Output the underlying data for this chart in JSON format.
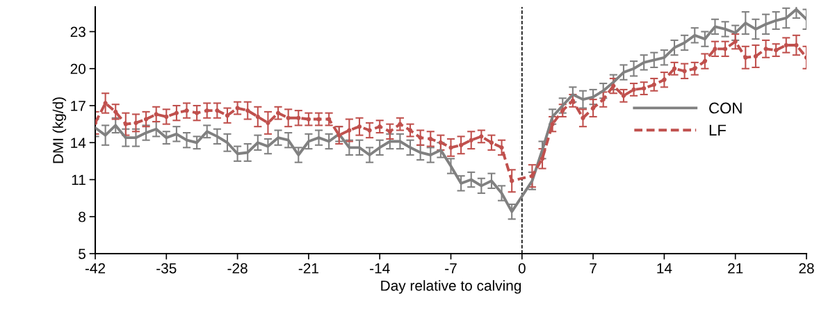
{
  "chart_data": {
    "type": "line",
    "xlabel": "Day relative to calving",
    "ylabel": "DMI (kg/d)",
    "x": [
      -42,
      -41,
      -40,
      -39,
      -38,
      -37,
      -36,
      -35,
      -34,
      -33,
      -32,
      -31,
      -30,
      -29,
      -28,
      -27,
      -26,
      -25,
      -24,
      -23,
      -22,
      -21,
      -20,
      -19,
      -18,
      -17,
      -16,
      -15,
      -14,
      -13,
      -12,
      -11,
      -10,
      -9,
      -8,
      -7,
      -6,
      -5,
      -4,
      -3,
      -2,
      -1,
      1,
      2,
      3,
      4,
      5,
      6,
      7,
      8,
      9,
      10,
      11,
      12,
      13,
      14,
      15,
      16,
      17,
      18,
      19,
      20,
      21,
      22,
      23,
      24,
      25,
      26,
      27,
      28
    ],
    "series": [
      {
        "name": "CON",
        "color": "#808080",
        "line_style": "solid",
        "marker": "none",
        "values": [
          15.2,
          14.6,
          15.4,
          14.4,
          14.4,
          14.8,
          15.1,
          14.4,
          14.7,
          14.2,
          14.0,
          14.9,
          14.5,
          14.0,
          13.1,
          13.2,
          14.0,
          13.7,
          14.4,
          14.2,
          13.0,
          14.1,
          14.4,
          14.1,
          14.7,
          13.6,
          13.6,
          13.0,
          13.6,
          14.1,
          14.1,
          13.6,
          13.2,
          13.0,
          13.4,
          12.1,
          10.7,
          11.0,
          10.5,
          10.9,
          9.9,
          8.4,
          10.9,
          13.4,
          16.1,
          17.0,
          17.9,
          17.5,
          17.7,
          18.2,
          18.9,
          19.7,
          20.0,
          20.5,
          20.7,
          20.9,
          21.7,
          22.1,
          22.7,
          22.4,
          23.4,
          23.2,
          22.9,
          23.7,
          23.2,
          23.6,
          23.9,
          24.1,
          24.8,
          24.0
        ],
        "errors": [
          0.7,
          0.8,
          0.6,
          0.7,
          0.7,
          0.6,
          0.6,
          0.5,
          0.6,
          0.6,
          0.5,
          0.5,
          0.6,
          0.7,
          0.6,
          0.7,
          0.6,
          0.6,
          0.6,
          0.6,
          0.6,
          0.6,
          0.6,
          0.6,
          0.6,
          0.6,
          0.6,
          0.6,
          0.6,
          0.6,
          0.6,
          0.6,
          0.6,
          0.6,
          0.6,
          0.6,
          0.6,
          0.6,
          0.6,
          0.6,
          0.6,
          0.6,
          0.7,
          0.7,
          0.6,
          0.6,
          0.6,
          0.7,
          0.6,
          0.6,
          0.6,
          0.6,
          0.6,
          0.6,
          0.6,
          0.6,
          0.6,
          0.6,
          0.6,
          0.6,
          0.6,
          0.6,
          0.6,
          0.9,
          0.8,
          0.8,
          0.7,
          0.8,
          0.7,
          0.8
        ]
      },
      {
        "name": "LF",
        "color": "#c0504d",
        "line_style": "dashed",
        "marker": "circle",
        "values": [
          15.6,
          17.2,
          16.5,
          15.5,
          15.6,
          15.9,
          16.3,
          16.1,
          16.4,
          16.6,
          16.4,
          16.6,
          16.6,
          16.2,
          16.8,
          16.6,
          16.1,
          15.6,
          16.4,
          16.0,
          16.0,
          15.9,
          15.9,
          15.9,
          14.6,
          15.0,
          15.3,
          15.0,
          15.3,
          14.9,
          15.5,
          15.0,
          14.4,
          14.3,
          14.0,
          13.6,
          13.8,
          14.2,
          14.5,
          14.0,
          13.6,
          10.9,
          11.3,
          12.7,
          15.5,
          16.6,
          17.4,
          16.0,
          16.8,
          17.5,
          18.6,
          17.8,
          18.3,
          18.4,
          18.7,
          19.1,
          20.0,
          19.8,
          20.0,
          20.6,
          21.6,
          21.6,
          22.2,
          20.9,
          21.0,
          21.6,
          21.5,
          21.9,
          21.9,
          20.9
        ],
        "errors": [
          0.9,
          0.8,
          0.6,
          0.9,
          0.7,
          0.6,
          0.6,
          0.6,
          0.6,
          0.6,
          0.6,
          0.6,
          0.6,
          0.6,
          0.5,
          0.7,
          0.8,
          0.9,
          0.5,
          0.7,
          0.6,
          0.5,
          0.5,
          0.5,
          0.7,
          0.9,
          0.7,
          0.6,
          0.5,
          0.6,
          0.5,
          0.5,
          0.6,
          0.6,
          0.6,
          0.7,
          0.7,
          0.7,
          0.5,
          0.6,
          0.6,
          0.9,
          0.9,
          0.8,
          0.6,
          0.5,
          0.5,
          0.7,
          0.7,
          0.6,
          0.6,
          0.5,
          0.5,
          0.5,
          0.5,
          0.6,
          0.5,
          0.6,
          0.5,
          0.6,
          0.6,
          0.6,
          0.6,
          0.9,
          0.9,
          0.7,
          0.5,
          0.6,
          0.8,
          0.9
        ]
      }
    ],
    "xlim": [
      -42,
      28
    ],
    "xticks": [
      -42,
      -35,
      -28,
      -21,
      -14,
      -7,
      0,
      7,
      14,
      21,
      28
    ],
    "ylim": [
      5,
      25
    ],
    "yticks": [
      5,
      8,
      11,
      14,
      17,
      20,
      23
    ],
    "ref_lines": [
      {
        "axis": "x",
        "value": 0,
        "color": "#000000",
        "line_style": "dashed"
      }
    ],
    "grid": false,
    "legend": "right"
  }
}
